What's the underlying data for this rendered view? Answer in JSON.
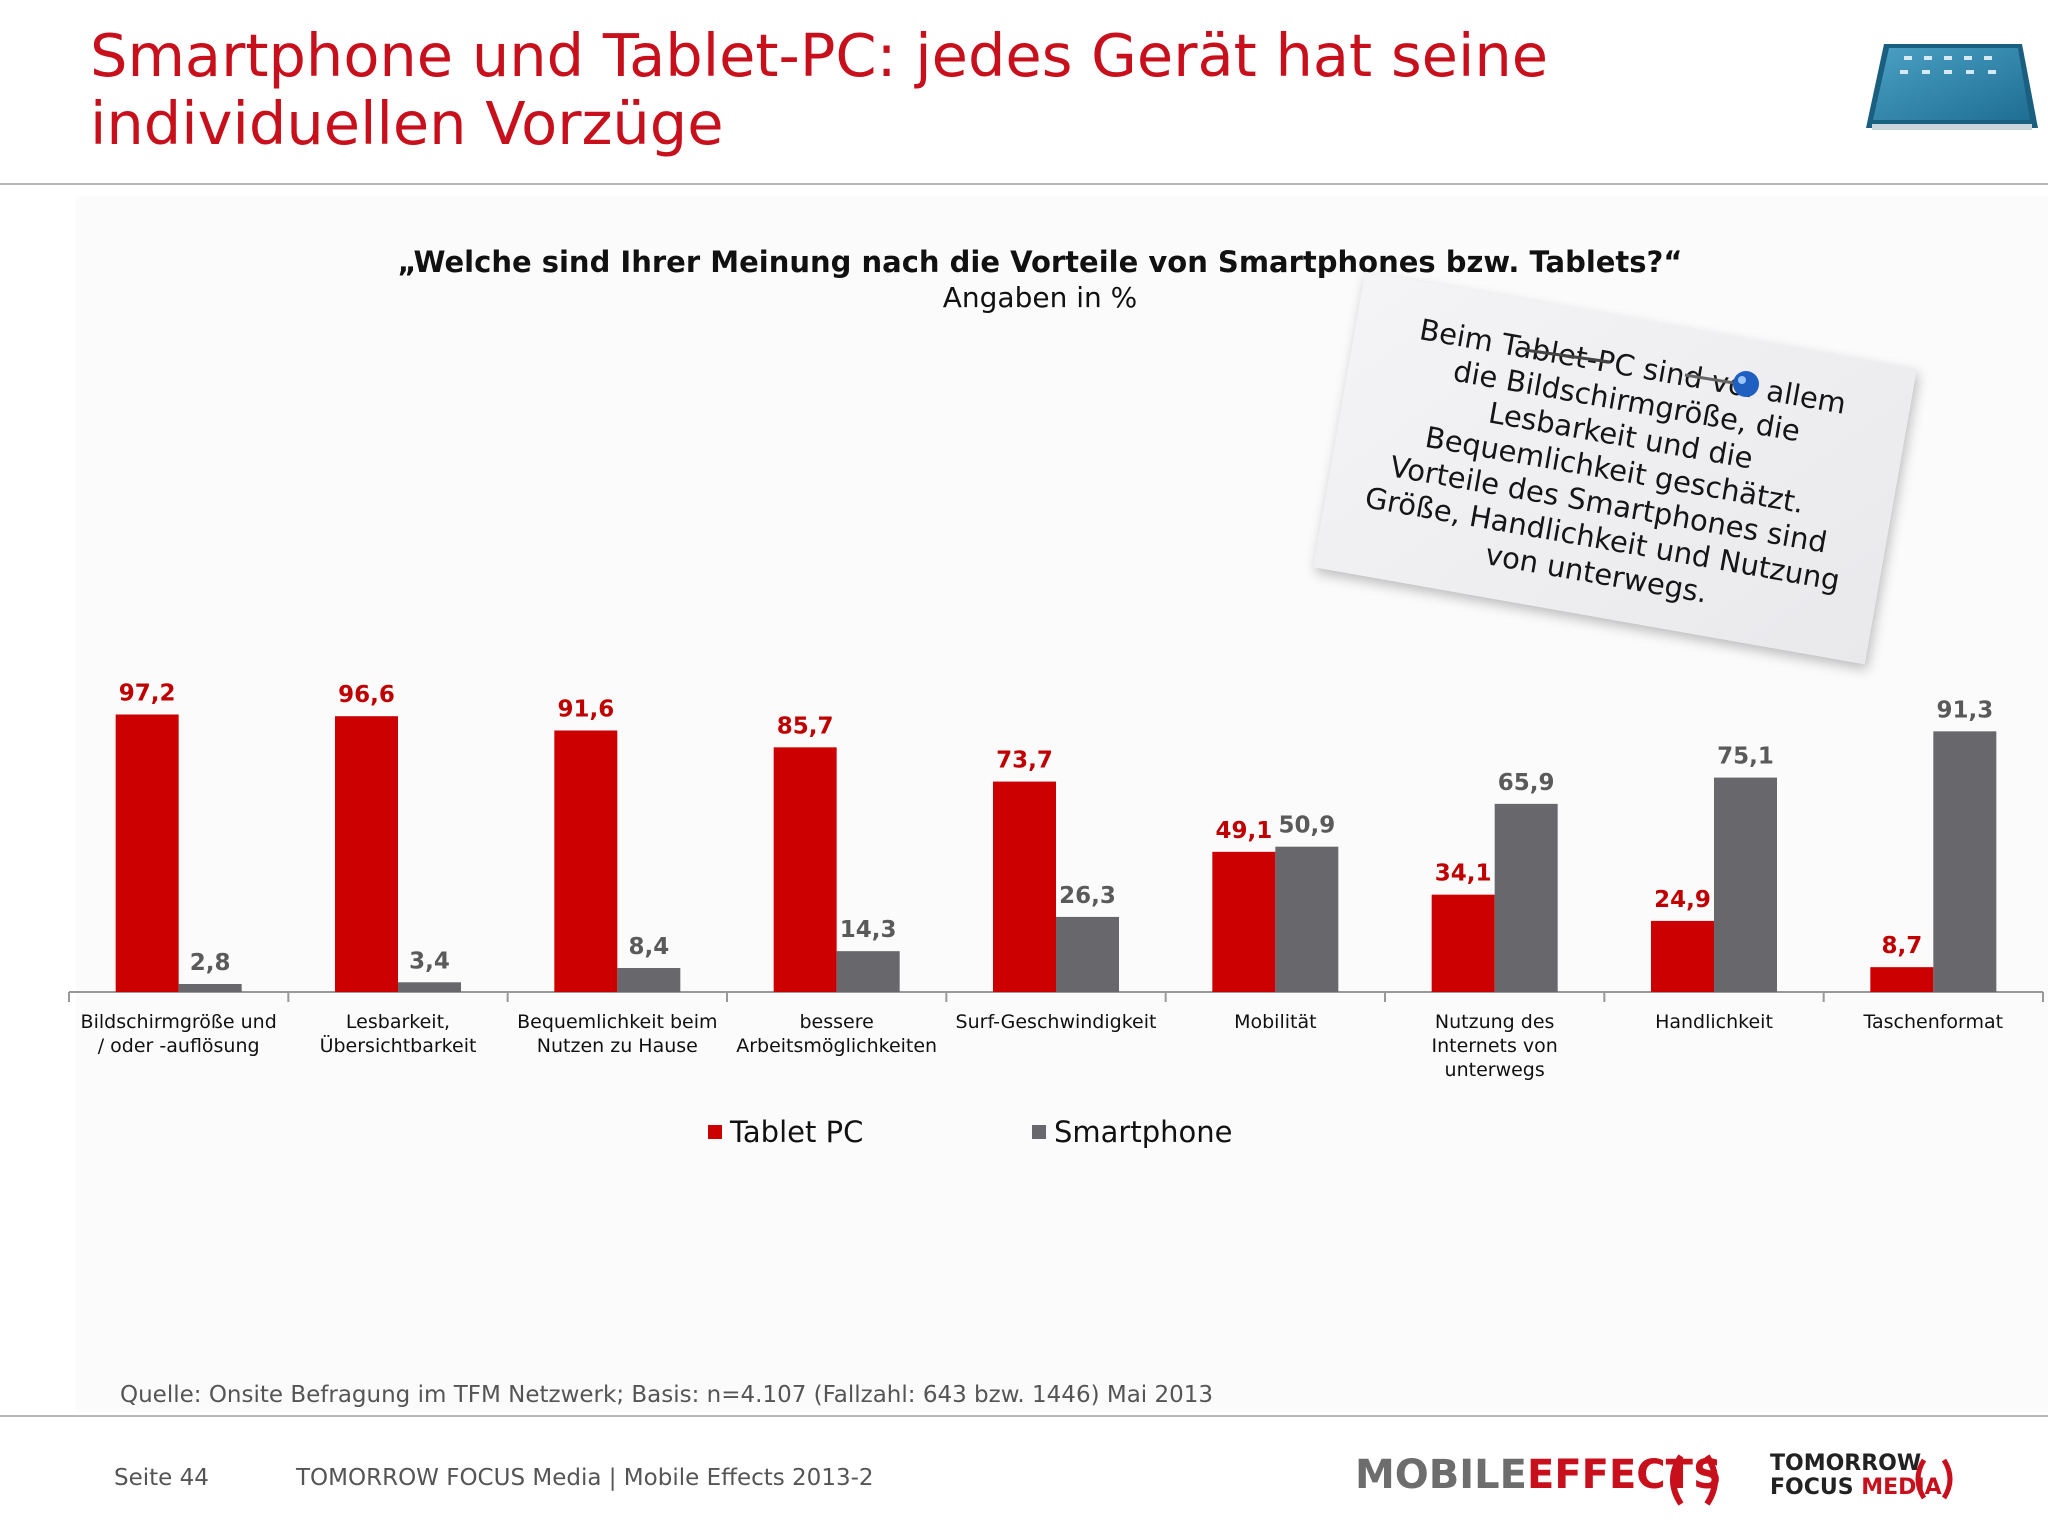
{
  "header": {
    "title_line1": "Smartphone und Tablet-PC: jedes Gerät hat seine",
    "title_line2": "individuellen Vorzüge"
  },
  "chart_data": {
    "type": "bar",
    "title": "„Welche sind Ihrer Meinung nach die Vorteile von Smartphones bzw. Tablets?“",
    "subtitle": "Angaben in %",
    "categories": [
      [
        "Bildschirmgröße und",
        "/ oder -auflösung"
      ],
      [
        "Lesbarkeit,",
        "Übersichtbarkeit"
      ],
      [
        "Bequemlichkeit beim",
        "Nutzen zu Hause"
      ],
      [
        "bessere",
        "Arbeitsmöglichkeiten"
      ],
      [
        "Surf-Geschwindigkeit"
      ],
      [
        "Mobilität"
      ],
      [
        "Nutzung des",
        "Internets von",
        "unterwegs"
      ],
      [
        "Handlichkeit"
      ],
      [
        "Taschenformat"
      ]
    ],
    "series": [
      {
        "name": "Tablet PC",
        "color": "#cc0000",
        "label_color": "#c00000",
        "values": [
          97.2,
          96.6,
          91.6,
          85.7,
          73.7,
          49.1,
          34.1,
          24.9,
          8.7
        ],
        "labels": [
          "97,2",
          "96,6",
          "91,6",
          "85,7",
          "73,7",
          "49,1",
          "34,1",
          "24,9",
          "8,7"
        ]
      },
      {
        "name": "Smartphone",
        "color": "#68676b",
        "label_color": "#5a5a5a",
        "values": [
          2.8,
          3.4,
          8.4,
          14.3,
          26.3,
          50.9,
          65.9,
          75.1,
          91.3
        ],
        "labels": [
          "2,8",
          "3,4",
          "8,4",
          "14,3",
          "26,3",
          "50,9",
          "65,9",
          "75,1",
          "91,3"
        ]
      }
    ],
    "ylim": [
      0,
      100
    ],
    "grid": false,
    "legend": "bottom-center"
  },
  "note": {
    "lines": [
      "Beim Tablet-PC sind vor allem",
      "die Bildschirmgröße, die",
      "Lesbarkeit und die",
      "Bequemlichkeit geschätzt.",
      "Vorteile des Smartphones sind",
      "Größe, Handlichkeit und Nutzung",
      "von unterwegs."
    ]
  },
  "source": "Quelle: Onsite Befragung im TFM Netzwerk; Basis: n=4.107 (Fallzahl: 643 bzw. 1446) Mai 2013",
  "footer": {
    "page": "Seite 44",
    "company": "TOMORROW FOCUS Media  |  Mobile Effects 2013-2",
    "logo_mobile": "MOBILE",
    "logo_effects": "EFFECTS",
    "logo_tomorrow": "TOMORROW",
    "logo_focus": "FOCUS",
    "logo_media": "MEDIA"
  },
  "icons": {
    "tablet": "tablet-image-icon",
    "pin": "pushpin-icon"
  }
}
